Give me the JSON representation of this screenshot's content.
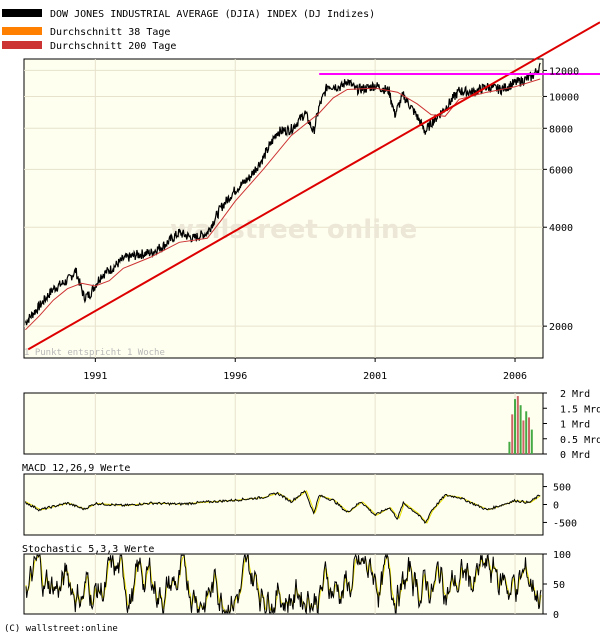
{
  "legend": [
    {
      "label": "DOW JONES INDUSTRIAL AVERAGE (DJIA) INDEX (DJ Indizes)",
      "color": "#000000"
    },
    {
      "label": "Durchschnitt 38 Tage",
      "color": "#ff8000"
    },
    {
      "label": "Durchschnitt 200 Tage",
      "color": "#cc3333"
    }
  ],
  "watermark": "wallstreet online",
  "scale_note": "1 Punkt entspricht 1 Woche",
  "copyright": "(C) wallstreet:online",
  "colors": {
    "background": "#fffff0",
    "price": "#000000",
    "ma38": "#ff8000",
    "ma200": "#cc3333",
    "trendline": "#dd0000",
    "resistance": "#ff00ff",
    "macd": "#e8e000",
    "volume": "#44aa44"
  },
  "chart_data": [
    {
      "type": "line",
      "scale": "log",
      "x_ticks": [
        "1991",
        "1996",
        "2001",
        "2006"
      ],
      "y_ticks": [
        2000,
        4000,
        6000,
        8000,
        10000,
        12000
      ],
      "ylim": [
        1600,
        13000
      ],
      "xlim": [
        1988.45,
        2007.0
      ],
      "series": [
        {
          "name": "DOW JONES INDUSTRIAL AVERAGE (DJIA) INDEX (DJ Indizes)",
          "x": [
            1988.5,
            1988.8,
            1989.0,
            1989.5,
            1990.0,
            1990.3,
            1990.6,
            1990.8,
            1991.2,
            1991.6,
            1992.0,
            1992.5,
            1993.0,
            1993.5,
            1994.0,
            1994.5,
            1995.0,
            1995.5,
            1996.0,
            1996.5,
            1997.0,
            1997.5,
            1998.0,
            1998.5,
            1998.8,
            1999.0,
            1999.3,
            1999.8,
            2000.0,
            2000.3,
            2000.7,
            2001.0,
            2001.5,
            2001.7,
            2002.0,
            2002.5,
            2002.8,
            2003.0,
            2003.5,
            2004.0,
            2004.5,
            2005.0,
            2005.5,
            2006.0,
            2006.3,
            2006.6,
            2006.9
          ],
          "y": [
            2050,
            2200,
            2300,
            2600,
            2750,
            2950,
            2450,
            2500,
            2850,
            3000,
            3200,
            3300,
            3350,
            3550,
            3850,
            3700,
            3850,
            4600,
            5200,
            5650,
            6500,
            7800,
            7950,
            8900,
            7800,
            9300,
            10800,
            10700,
            11200,
            10500,
            10600,
            10800,
            10400,
            8800,
            10100,
            8700,
            7800,
            8300,
            9200,
            10400,
            10300,
            10700,
            10500,
            11000,
            11200,
            11500,
            12300
          ]
        },
        {
          "name": "Durchschnitt 200 Tage",
          "x": [
            1988.5,
            1989.0,
            1989.5,
            1990.0,
            1990.5,
            1991.0,
            1991.5,
            1992.0,
            1993.0,
            1994.0,
            1995.0,
            1995.5,
            1996.0,
            1997.0,
            1998.0,
            1999.0,
            1999.5,
            2000.0,
            2001.0,
            2001.8,
            2002.5,
            2003.0,
            2003.5,
            2004.0,
            2005.0,
            2006.0,
            2006.9
          ],
          "y": [
            1950,
            2150,
            2400,
            2600,
            2700,
            2650,
            2750,
            3000,
            3250,
            3600,
            3700,
            4200,
            4800,
            6000,
            7600,
            8900,
            9900,
            10500,
            10600,
            10300,
            9500,
            8800,
            8700,
            9800,
            10300,
            10700,
            11300
          ]
        }
      ],
      "annotations": [
        {
          "type": "trendline",
          "x1": 1988.6,
          "y1": 1700,
          "x2": 2007.0,
          "y2": 11800
        },
        {
          "type": "horizontal",
          "x1": 1999.0,
          "x2": 2007.0,
          "y": 11700
        }
      ]
    },
    {
      "type": "bar",
      "y_ticks": [
        {
          "value": 2,
          "label": "2 Mrd"
        },
        {
          "value": 1.5,
          "label": "1.5 Mrd"
        },
        {
          "value": 1,
          "label": "1 Mrd"
        },
        {
          "value": 0.5,
          "label": "0.5 Mrd"
        },
        {
          "value": 0,
          "label": "0 Mrd"
        }
      ],
      "ylim": [
        0,
        2
      ],
      "x": [
        2005.8,
        2005.9,
        2006.0,
        2006.1,
        2006.2,
        2006.3,
        2006.4,
        2006.5,
        2006.6
      ],
      "values": [
        0.4,
        1.3,
        1.8,
        1.9,
        1.6,
        1.1,
        1.4,
        1.2,
        0.8
      ]
    },
    {
      "type": "line",
      "title": "MACD 12,26,9 Werte",
      "y_ticks": [
        500,
        0,
        -500
      ],
      "ylim": [
        -850,
        850
      ],
      "series": [
        {
          "name": "MACD",
          "x": [
            1988.5,
            1989.0,
            1990.0,
            1990.6,
            1991.0,
            1992.0,
            1993.0,
            1994.0,
            1995.0,
            1996.0,
            1997.0,
            1997.5,
            1998.0,
            1998.5,
            1998.8,
            1999.0,
            1999.5,
            2000.0,
            2000.5,
            2001.0,
            2001.5,
            2001.8,
            2002.0,
            2002.5,
            2002.8,
            2003.0,
            2003.5,
            2004.0,
            2005.0,
            2006.0,
            2006.5,
            2006.9
          ],
          "y": [
            60,
            -150,
            40,
            -130,
            30,
            -30,
            40,
            10,
            70,
            120,
            200,
            320,
            80,
            380,
            -250,
            250,
            120,
            -220,
            80,
            -300,
            -80,
            -400,
            40,
            -250,
            -520,
            -180,
            260,
            200,
            -150,
            110,
            50,
            270
          ]
        }
      ]
    },
    {
      "type": "line",
      "title": "Stochastic 5,3,3 Werte",
      "y_ticks": [
        100,
        50,
        0
      ],
      "ylim": [
        0,
        100
      ],
      "series": [
        {
          "name": "Stochastic",
          "generated": "oscillation"
        }
      ]
    }
  ]
}
